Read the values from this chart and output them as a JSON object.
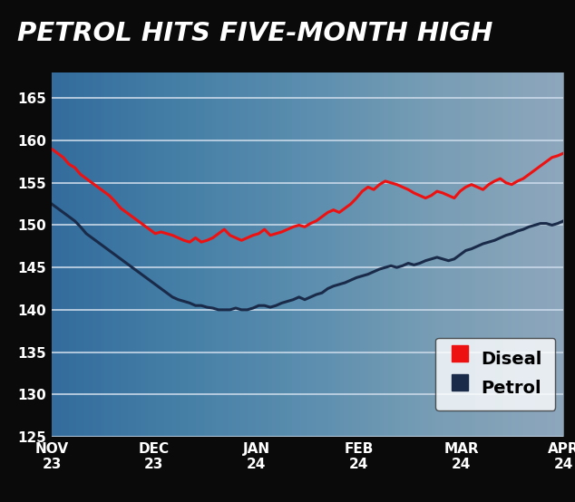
{
  "title": "PETROL HITS FIVE-MONTH HIGH",
  "title_bg": "#0a0a0a",
  "title_color": "#ffffff",
  "ylim": [
    125,
    168
  ],
  "yticks": [
    125,
    130,
    135,
    140,
    145,
    150,
    155,
    160,
    165
  ],
  "xtick_labels": [
    "NOV\n23",
    "DEC\n23",
    "JAN\n24",
    "FEB\n24",
    "MAR\n24",
    "APR\n24"
  ],
  "legend_labels": [
    "Diseal",
    "Petrol"
  ],
  "diesel_color": "#ee1111",
  "petrol_color": "#1a2b4a",
  "bg_left": "#3a5070",
  "bg_right": "#8aaabb",
  "grid_color": "#c8d8e8",
  "diesel": [
    159.0,
    158.5,
    158.0,
    157.2,
    156.8,
    156.0,
    155.5,
    155.0,
    154.5,
    154.0,
    153.5,
    152.8,
    152.0,
    151.5,
    151.0,
    150.5,
    150.0,
    149.5,
    149.0,
    149.2,
    149.0,
    148.8,
    148.5,
    148.2,
    148.0,
    148.5,
    148.0,
    148.2,
    148.5,
    149.0,
    149.5,
    148.8,
    148.5,
    148.2,
    148.5,
    148.8,
    149.0,
    149.5,
    148.8,
    149.0,
    149.2,
    149.5,
    149.8,
    150.0,
    149.8,
    150.2,
    150.5,
    151.0,
    151.5,
    151.8,
    151.5,
    152.0,
    152.5,
    153.2,
    154.0,
    154.5,
    154.2,
    154.8,
    155.2,
    155.0,
    154.8,
    154.5,
    154.2,
    153.8,
    153.5,
    153.2,
    153.5,
    154.0,
    153.8,
    153.5,
    153.2,
    154.0,
    154.5,
    154.8,
    154.5,
    154.2,
    154.8,
    155.2,
    155.5,
    155.0,
    154.8,
    155.2,
    155.5,
    156.0,
    156.5,
    157.0,
    157.5,
    158.0,
    158.2,
    158.5
  ],
  "petrol": [
    152.5,
    152.0,
    151.5,
    151.0,
    150.5,
    149.8,
    149.0,
    148.5,
    148.0,
    147.5,
    147.0,
    146.5,
    146.0,
    145.5,
    145.0,
    144.5,
    144.0,
    143.5,
    143.0,
    142.5,
    142.0,
    141.5,
    141.2,
    141.0,
    140.8,
    140.5,
    140.5,
    140.3,
    140.2,
    140.0,
    140.0,
    140.0,
    140.2,
    140.0,
    140.0,
    140.2,
    140.5,
    140.5,
    140.3,
    140.5,
    140.8,
    141.0,
    141.2,
    141.5,
    141.2,
    141.5,
    141.8,
    142.0,
    142.5,
    142.8,
    143.0,
    143.2,
    143.5,
    143.8,
    144.0,
    144.2,
    144.5,
    144.8,
    145.0,
    145.2,
    145.0,
    145.2,
    145.5,
    145.3,
    145.5,
    145.8,
    146.0,
    146.2,
    146.0,
    145.8,
    146.0,
    146.5,
    147.0,
    147.2,
    147.5,
    147.8,
    148.0,
    148.2,
    148.5,
    148.8,
    149.0,
    149.3,
    149.5,
    149.8,
    150.0,
    150.2,
    150.2,
    150.0,
    150.2,
    150.5
  ],
  "figsize": [
    6.34,
    5.54
  ],
  "dpi": 100
}
